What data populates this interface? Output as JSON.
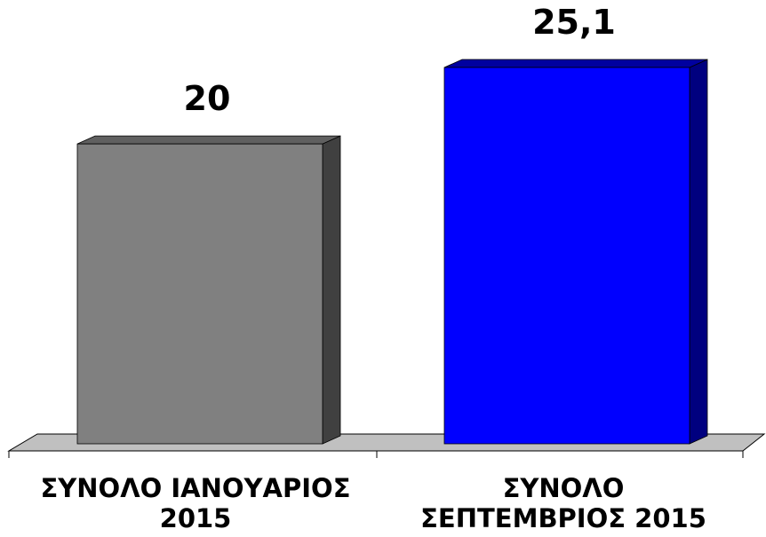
{
  "chart_data": {
    "type": "bar",
    "categories": [
      [
        "ΣΥΝΟΛΟ ΙΑΝΟΥΑΡΙΟΣ",
        "2015"
      ],
      [
        "ΣΥΝΟΛΟ",
        "ΣΕΠΤΕΜΒΡΙΟΣ 2015"
      ]
    ],
    "values": [
      20,
      25.1
    ],
    "data_labels": [
      "20",
      "25,1"
    ],
    "colors": [
      "#808080",
      "#0000ff"
    ],
    "side_colors": [
      "#404040",
      "#00007f"
    ],
    "top_colors": [
      "#606060",
      "#00009f"
    ],
    "floor_color": "#c0c0c0",
    "title": "",
    "xlabel": "",
    "ylabel": "",
    "ylim": [
      0,
      25.1
    ],
    "grid": false,
    "legend": "none",
    "style": "3d-column"
  }
}
